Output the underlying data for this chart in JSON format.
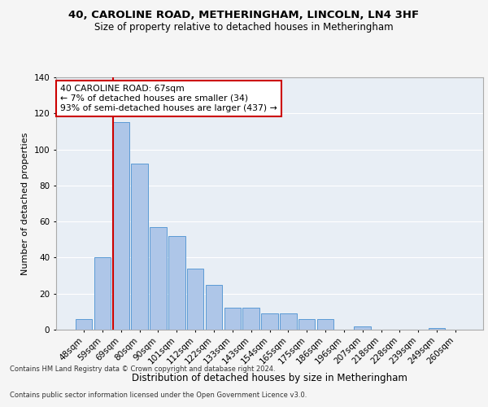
{
  "title1": "40, CAROLINE ROAD, METHERINGHAM, LINCOLN, LN4 3HF",
  "title2": "Size of property relative to detached houses in Metheringham",
  "xlabel": "Distribution of detached houses by size in Metheringham",
  "ylabel": "Number of detached properties",
  "categories": [
    "48sqm",
    "59sqm",
    "69sqm",
    "80sqm",
    "90sqm",
    "101sqm",
    "112sqm",
    "122sqm",
    "133sqm",
    "143sqm",
    "154sqm",
    "165sqm",
    "175sqm",
    "186sqm",
    "196sqm",
    "207sqm",
    "218sqm",
    "228sqm",
    "239sqm",
    "249sqm",
    "260sqm"
  ],
  "values": [
    6,
    40,
    115,
    92,
    57,
    52,
    34,
    25,
    12,
    12,
    9,
    9,
    6,
    6,
    0,
    2,
    0,
    0,
    0,
    1,
    0
  ],
  "bar_color": "#aec6e8",
  "bar_edge_color": "#5b9bd5",
  "vline_x_index": 2,
  "vline_color": "#cc0000",
  "marker_label_line1": "40 CAROLINE ROAD: 67sqm",
  "marker_label_line2": "← 7% of detached houses are smaller (34)",
  "marker_label_line3": "93% of semi-detached houses are larger (437) →",
  "annotation_box_facecolor": "#ffffff",
  "annotation_box_edgecolor": "#cc0000",
  "ylim": [
    0,
    140
  ],
  "yticks": [
    0,
    20,
    40,
    60,
    80,
    100,
    120,
    140
  ],
  "background_color": "#e8eef5",
  "grid_color": "#ffffff",
  "fig_bg_color": "#f5f5f5",
  "footer1": "Contains HM Land Registry data © Crown copyright and database right 2024.",
  "footer2": "Contains public sector information licensed under the Open Government Licence v3.0."
}
